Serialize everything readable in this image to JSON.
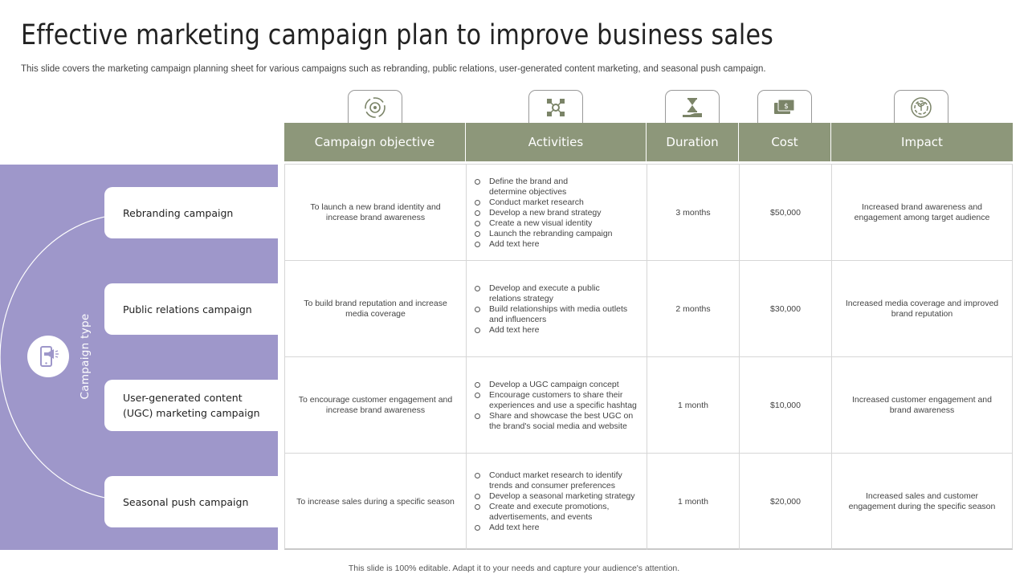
{
  "title": "Effective marketing campaign plan to improve business sales",
  "subtitle": "This slide covers the marketing campaign planning sheet for various campaigns such as rebranding, public relations, user-generated content marketing, and seasonal push campaign.",
  "footer": "This slide is 100% editable. Adapt it to your needs and capture your audience's attention.",
  "left_panel": {
    "label": "Campaign type",
    "icon": "megaphone-phone-icon",
    "campaigns": [
      {
        "name": "Rebranding campaign"
      },
      {
        "name": "Public relations campaign"
      },
      {
        "name": "User-generated content (UGC) marketing campaign"
      },
      {
        "name": "Seasonal push campaign"
      }
    ]
  },
  "header_icons": [
    "target-cycle-icon",
    "network-nodes-icon",
    "hourglass-hand-icon",
    "money-icon",
    "growth-circle-icon"
  ],
  "columns": [
    "Campaign objective",
    "Activities",
    "Duration",
    "Cost",
    "Impact"
  ],
  "rows": [
    {
      "objective": "To launch a new brand identity and increase brand awareness",
      "activities": [
        "Define the brand and determine objectives",
        "Conduct market research",
        "Develop a new brand strategy",
        "Create a new visual identity",
        "Launch the rebranding campaign",
        "Add text here"
      ],
      "duration": "3 months",
      "cost": "$50,000",
      "impact": "Increased brand awareness and engagement among target audience"
    },
    {
      "objective": "To build brand reputation and increase media coverage",
      "activities": [
        "Develop and execute a public relations strategy",
        "Build relationships with media outlets and influencers",
        "Add text here"
      ],
      "duration": "2 months",
      "cost": "$30,000",
      "impact": "Increased media coverage and improved brand reputation"
    },
    {
      "objective": "To encourage customer engagement and increase brand awareness",
      "activities": [
        "Develop a UGC campaign concept",
        "Encourage customers to share their experiences and use a specific hashtag",
        "Share and showcase the best UGC on the brand's social media and website"
      ],
      "duration": "1 month",
      "cost": "$10,000",
      "impact": "Increased customer engagement and brand awareness"
    },
    {
      "objective": "To increase sales during a specific season",
      "activities": [
        "Conduct market research to identify trends and consumer preferences",
        "Develop a seasonal marketing strategy",
        "Create and execute promotions, advertisements, and events",
        "Add text here"
      ],
      "duration": "1 month",
      "cost": "$20,000",
      "impact": "Increased sales and customer engagement during the specific season"
    }
  ],
  "colors": {
    "header_bg": "#8d977a",
    "panel_bg": "#9e97ca",
    "icon_color": "#7b8468"
  }
}
